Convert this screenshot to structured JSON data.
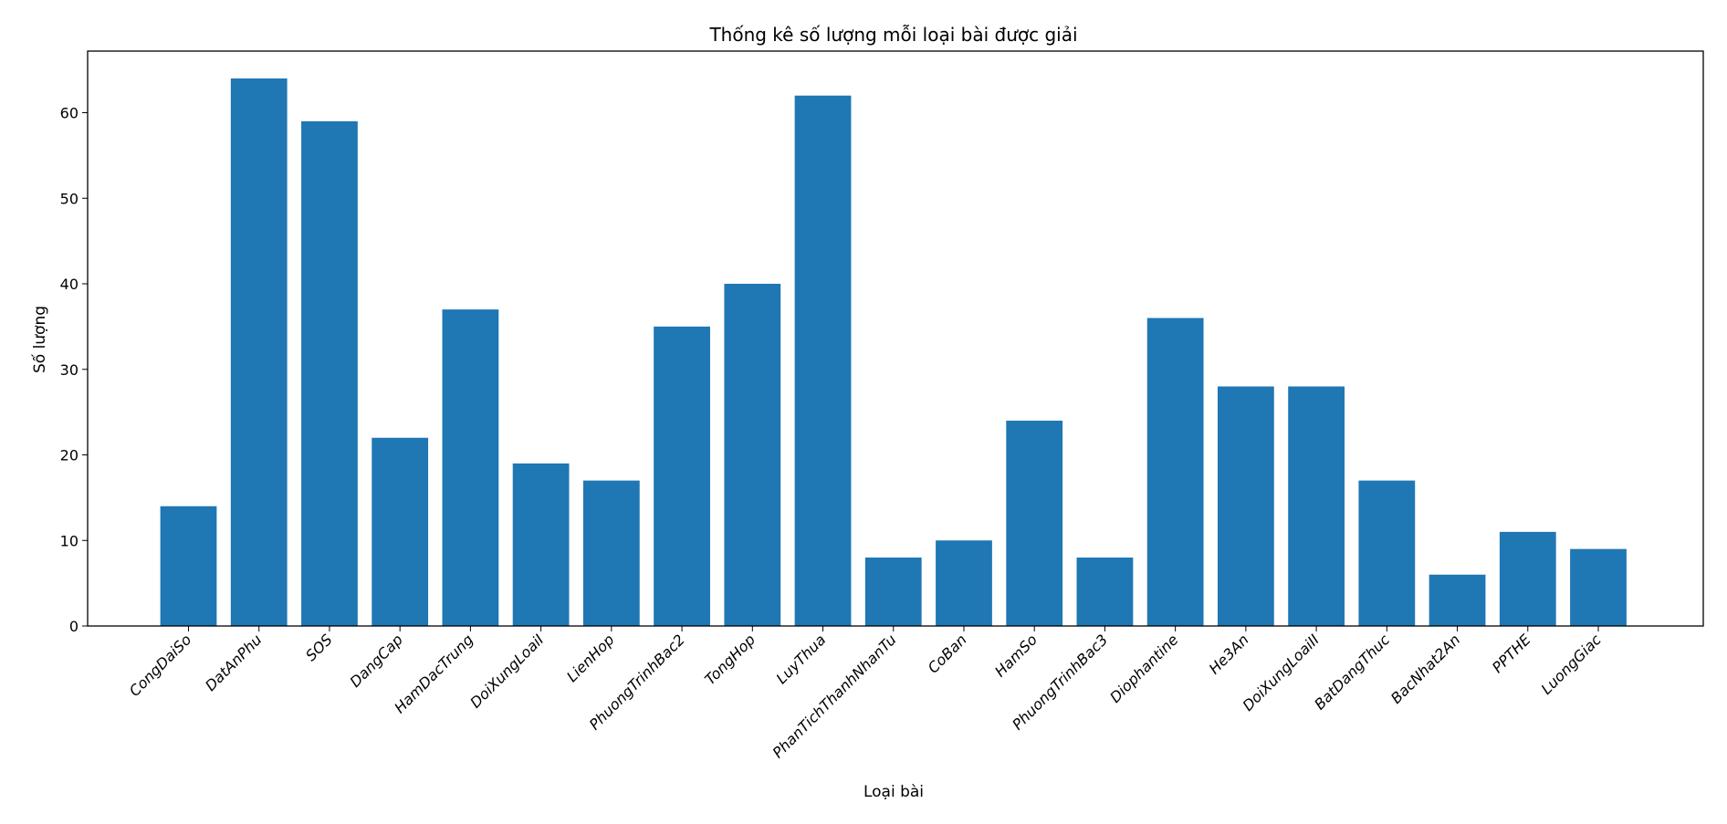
{
  "chart_data": {
    "type": "bar",
    "title": "Thống kê số lượng mỗi loại bài được giải",
    "xlabel": "Loại bài",
    "ylabel": "Số lượng",
    "categories": [
      "CongDaiSo",
      "DatAnPhu",
      "SOS",
      "DangCap",
      "HamDacTrung",
      "DoiXungLoaiI",
      "LienHop",
      "PhuongTrinhBac2",
      "TongHop",
      "LuyThua",
      "PhanTichThanhNhanTu",
      "CoBan",
      "HamSo",
      "PhuongTrinhBac3",
      "Diophantine",
      "He3An",
      "DoiXungLoaiII",
      "BatDangThuc",
      "BacNhat2An",
      "PPTHE",
      "LuongGiac"
    ],
    "values": [
      14,
      64,
      59,
      22,
      37,
      19,
      17,
      35,
      40,
      62,
      8,
      10,
      24,
      8,
      36,
      28,
      28,
      17,
      6,
      11,
      9
    ],
    "ylim": [
      0,
      67.2
    ],
    "yticks": [
      0,
      10,
      20,
      30,
      40,
      50,
      60
    ],
    "grid": false,
    "bar_color": "#1f77b4"
  }
}
